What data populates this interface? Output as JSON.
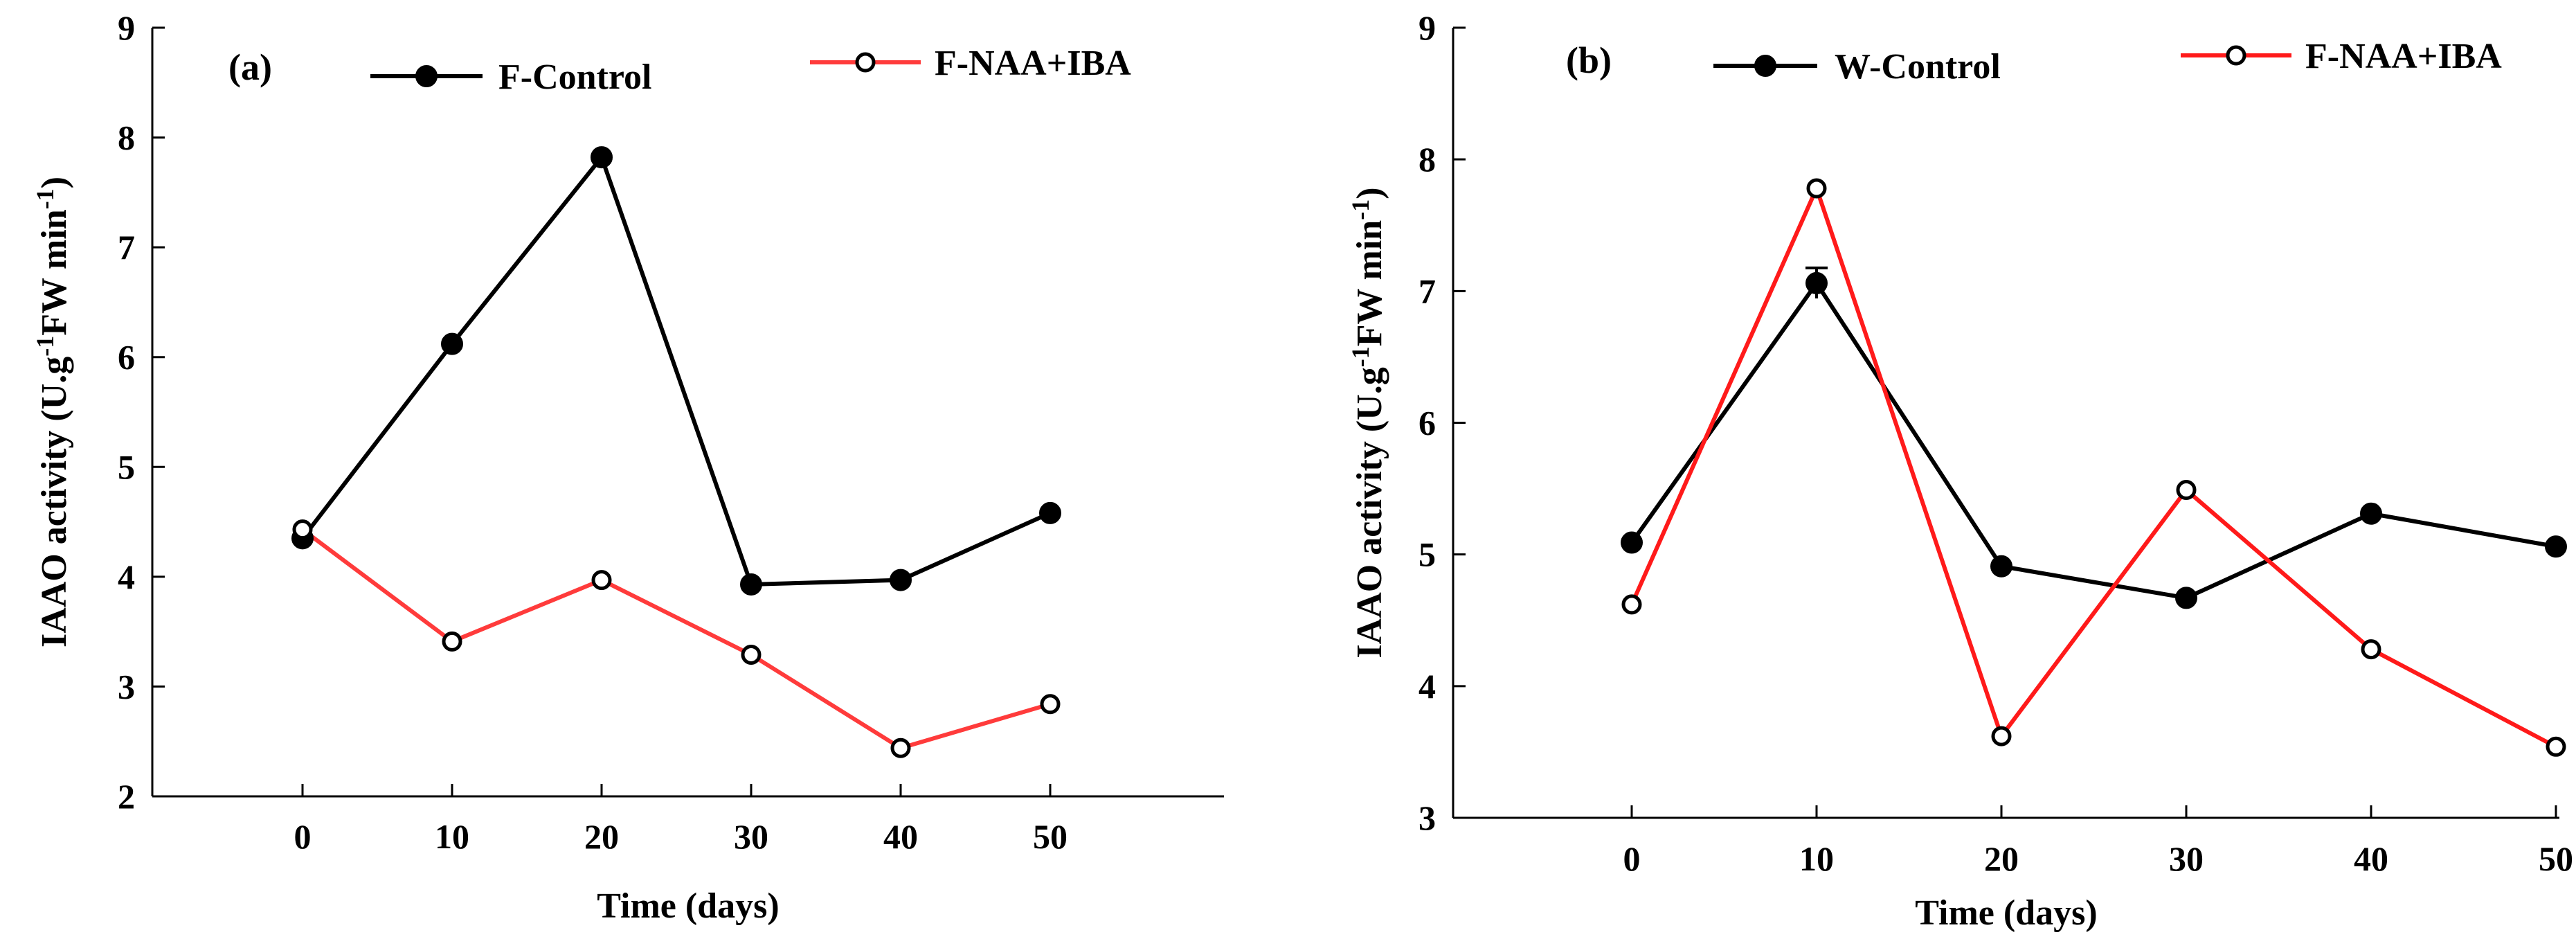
{
  "chart_data": [
    {
      "type": "line",
      "panel_label": "(a)",
      "xlabel": "Time (days)",
      "ylabel_parts": [
        "IAAO activity (U.g",
        "-1",
        "FW min",
        "-1",
        ")"
      ],
      "x": [
        0,
        10,
        20,
        30,
        40,
        50
      ],
      "x_ticks": [
        "0",
        "10",
        "20",
        "30",
        "40",
        "50"
      ],
      "y_ticks": [
        "2",
        "3",
        "4",
        "5",
        "6",
        "7",
        "8",
        "9"
      ],
      "ylim": [
        2,
        9
      ],
      "grid": false,
      "legend_position": "top",
      "series": [
        {
          "name": "F-Control",
          "color": "#000000",
          "marker": "filled-circle",
          "values": [
            4.35,
            6.12,
            7.82,
            3.93,
            3.97,
            4.58
          ]
        },
        {
          "name": "F-NAA+IBA",
          "color": "#ff3b3b",
          "marker": "open-circle",
          "values": [
            4.43,
            3.41,
            3.97,
            3.29,
            2.44,
            2.84
          ]
        }
      ]
    },
    {
      "type": "line",
      "panel_label": "(b)",
      "xlabel": "Time (days)",
      "ylabel_parts": [
        "IAAO activity (U.g",
        "-1",
        "FW min",
        "-1",
        ")"
      ],
      "x": [
        0,
        10,
        20,
        30,
        40,
        50
      ],
      "x_ticks": [
        "0",
        "10",
        "20",
        "30",
        "40",
        "50"
      ],
      "y_ticks": [
        "3",
        "4",
        "5",
        "6",
        "7",
        "8",
        "9"
      ],
      "ylim": [
        3,
        9
      ],
      "grid": false,
      "legend_position": "top",
      "series": [
        {
          "name": "W-Control",
          "color": "#000000",
          "marker": "filled-circle",
          "values": [
            5.09,
            7.06,
            4.91,
            4.67,
            5.31,
            5.06
          ]
        },
        {
          "name": "F-NAA+IBA",
          "color": "#ff1a1a",
          "marker": "open-circle",
          "values": [
            4.62,
            7.78,
            3.62,
            5.49,
            4.28,
            3.54
          ]
        }
      ]
    }
  ]
}
